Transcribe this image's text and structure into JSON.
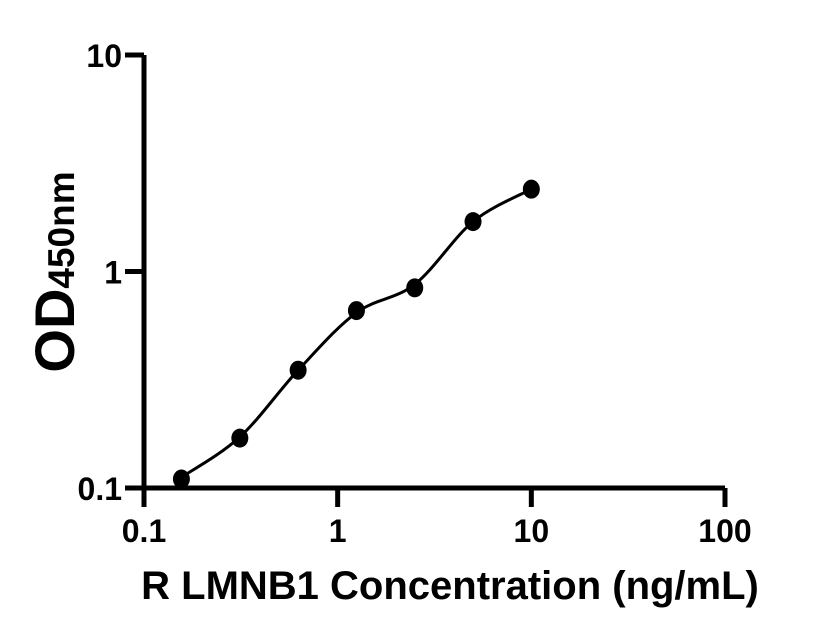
{
  "figure": {
    "background_color": "#ffffff",
    "axis_color": "#000000",
    "point_color": "#000000",
    "curve_color": "#000000",
    "text_color": "#000000"
  },
  "chart_data": {
    "type": "scatter",
    "title": "",
    "xlabel": "R LMNB1 Concentration (ng/mL)",
    "ylabel_main": "OD",
    "ylabel_sub": "450nm",
    "x_scale": "log10",
    "y_scale": "log10",
    "xlim": [
      0.1,
      100
    ],
    "ylim": [
      0.1,
      10
    ],
    "x_ticks": [
      "0.1",
      "1",
      "10",
      "100"
    ],
    "y_ticks": [
      "0.1",
      "1",
      "10"
    ],
    "grid": false,
    "legend": false,
    "marker": "filled-circle",
    "series": [
      {
        "x": [
          0.156,
          0.3125,
          0.625,
          1.25,
          2.5,
          5,
          10
        ],
        "y": [
          0.11,
          0.17,
          0.35,
          0.66,
          0.84,
          1.7,
          2.4
        ]
      }
    ],
    "fit_curve": {
      "x": [
        0.156,
        0.3125,
        0.625,
        1.25,
        2.5,
        5,
        10
      ],
      "y": [
        0.112,
        0.172,
        0.35,
        0.645,
        0.872,
        1.7,
        2.4
      ]
    }
  }
}
